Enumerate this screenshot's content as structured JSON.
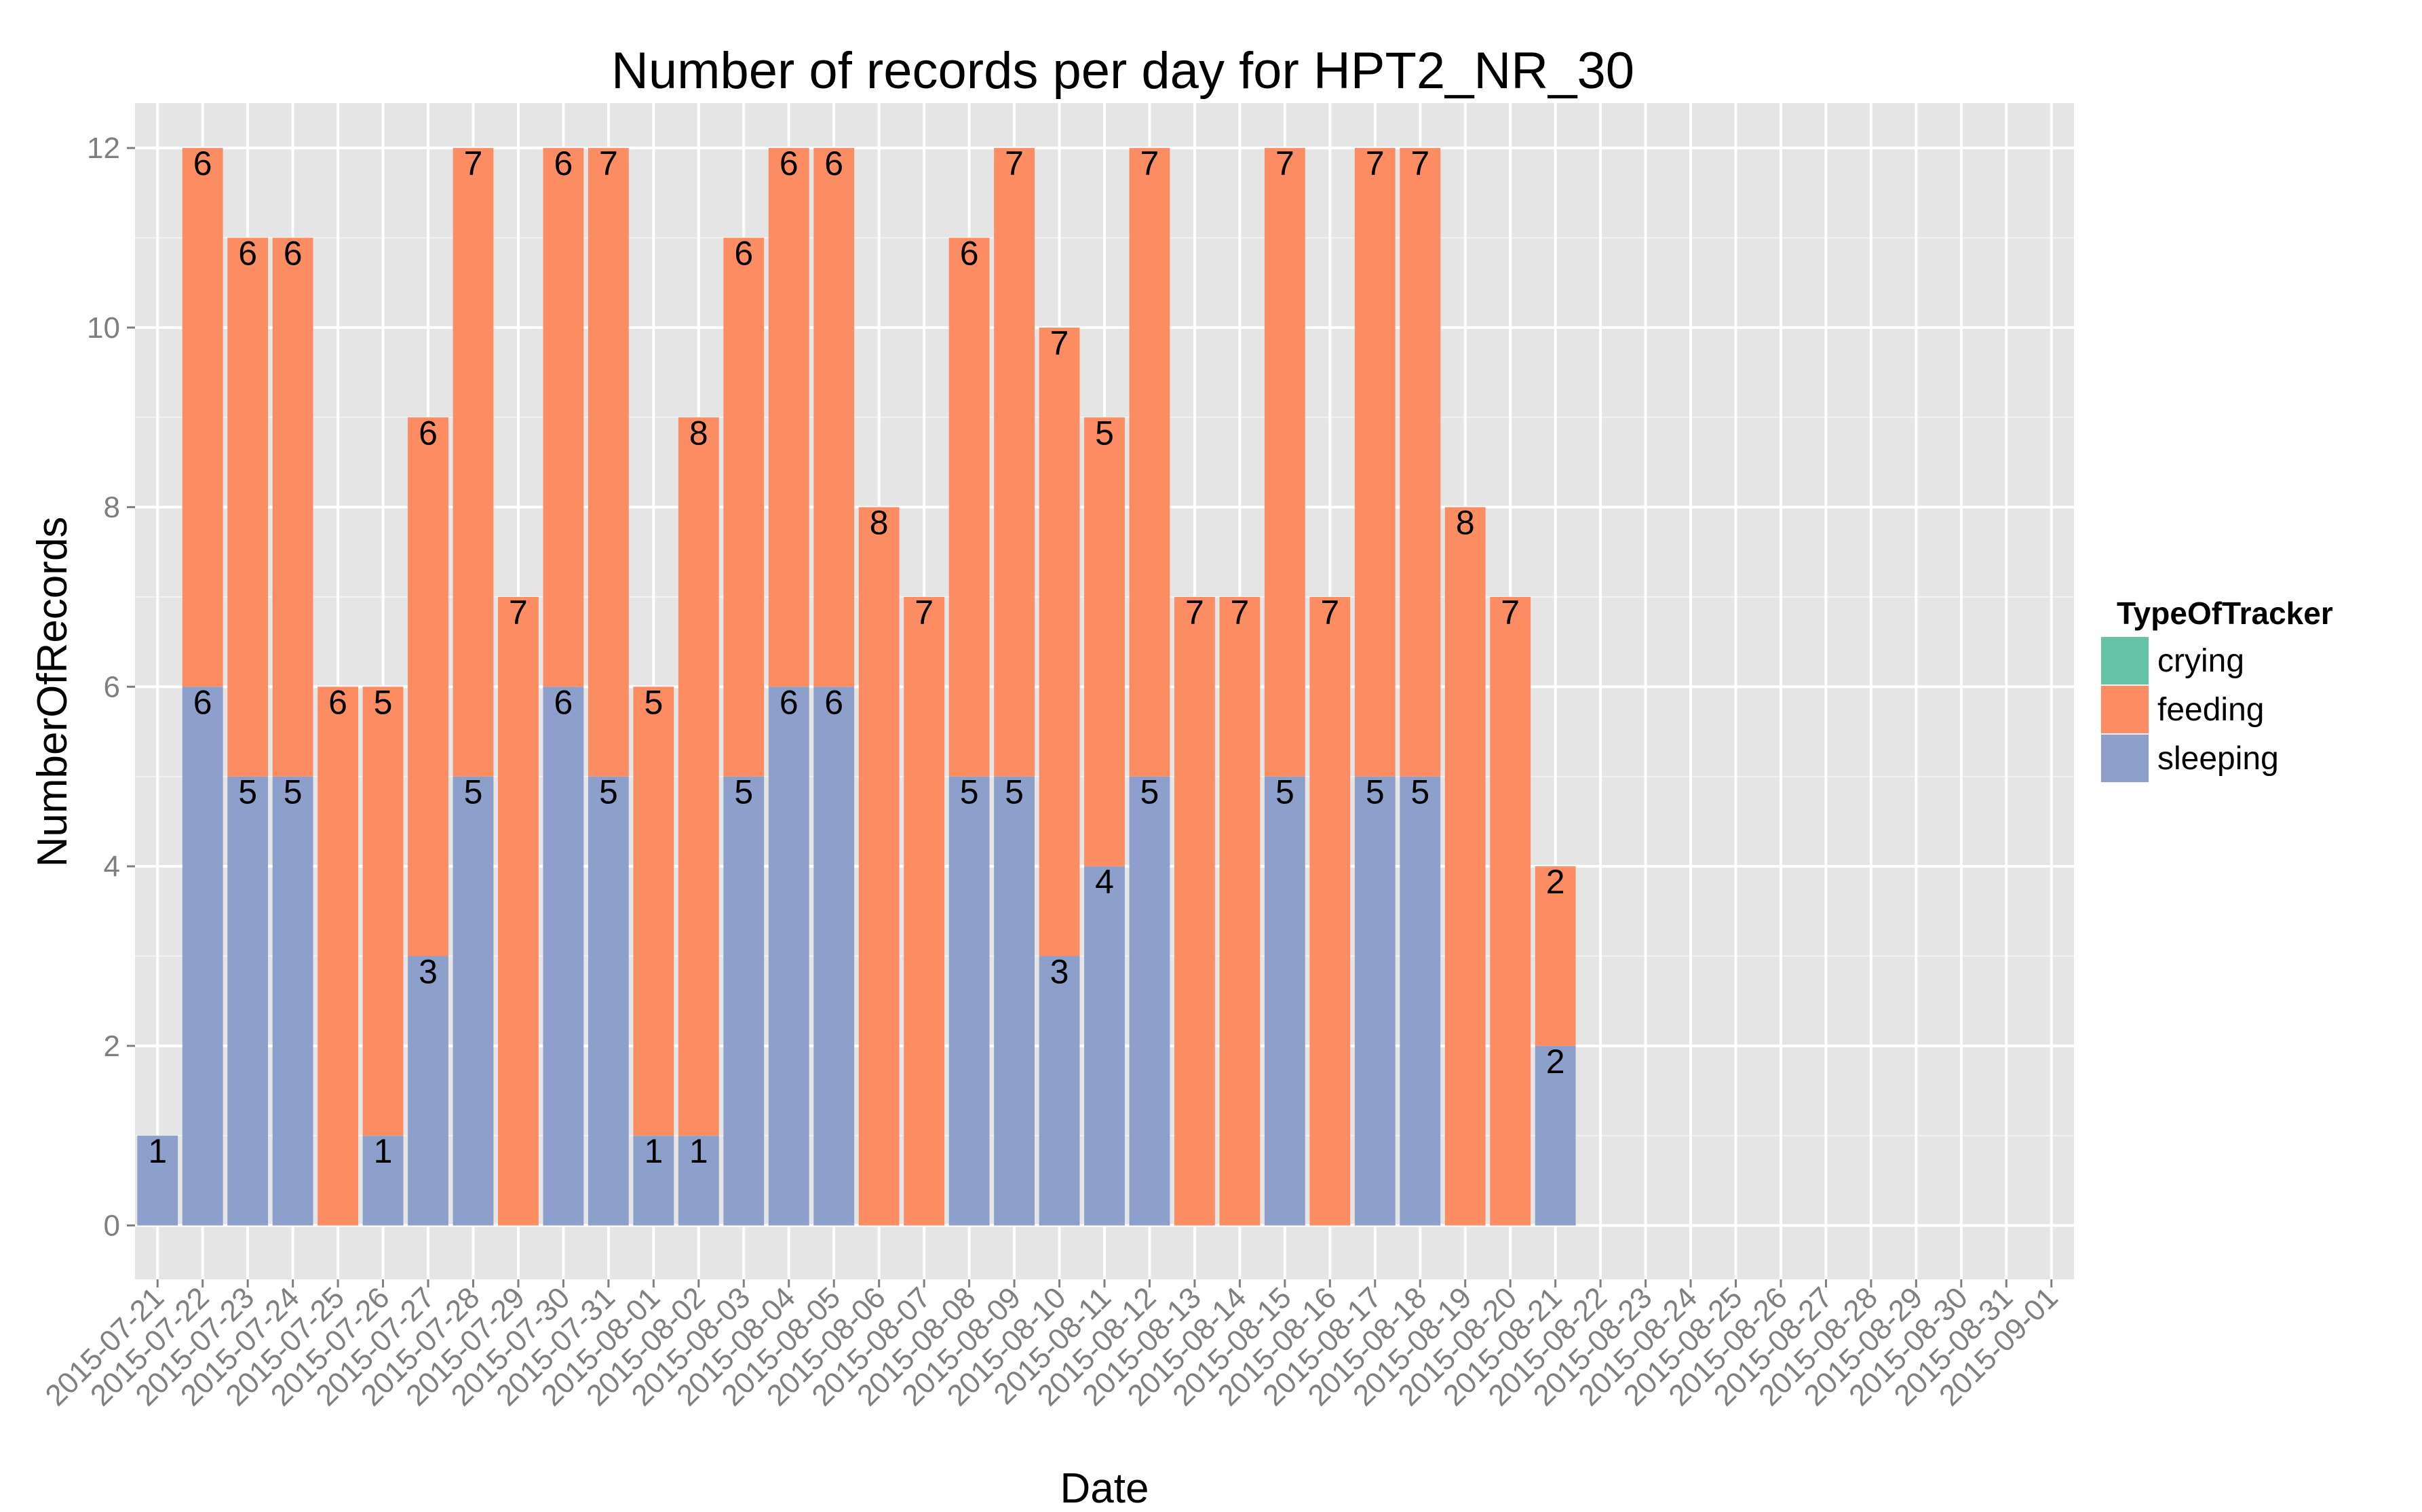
{
  "chart_data": {
    "type": "bar",
    "stacked": true,
    "title": "Number of records per day for HPT2_NR_30",
    "xlabel": "Date",
    "ylabel": "NumberOfRecords",
    "ylim": [
      -0.6,
      12.5
    ],
    "yticks": [
      0,
      2,
      4,
      6,
      8,
      10,
      12
    ],
    "legend": {
      "title": "TypeOfTracker",
      "position": "right"
    },
    "colors": {
      "crying": "#66c2a5",
      "feeding": "#fc8d62",
      "sleeping": "#8da0cb"
    },
    "categories": [
      "2015-07-21",
      "2015-07-22",
      "2015-07-23",
      "2015-07-24",
      "2015-07-25",
      "2015-07-26",
      "2015-07-27",
      "2015-07-28",
      "2015-07-29",
      "2015-07-30",
      "2015-07-31",
      "2015-08-01",
      "2015-08-02",
      "2015-08-03",
      "2015-08-04",
      "2015-08-05",
      "2015-08-06",
      "2015-08-07",
      "2015-08-08",
      "2015-08-09",
      "2015-08-10",
      "2015-08-11",
      "2015-08-12",
      "2015-08-13",
      "2015-08-14",
      "2015-08-15",
      "2015-08-16",
      "2015-08-17",
      "2015-08-18",
      "2015-08-19",
      "2015-08-20",
      "2015-08-21",
      "2015-08-22",
      "2015-08-23",
      "2015-08-24",
      "2015-08-25",
      "2015-08-26",
      "2015-08-27",
      "2015-08-28",
      "2015-08-29",
      "2015-08-30",
      "2015-08-31",
      "2015-09-01"
    ],
    "series": [
      {
        "name": "crying",
        "values": [
          0,
          0,
          0,
          0,
          0,
          0,
          0,
          0,
          0,
          0,
          0,
          0,
          0,
          0,
          0,
          0,
          0,
          0,
          0,
          0,
          0,
          0,
          0,
          0,
          0,
          0,
          0,
          0,
          0,
          0,
          0,
          0,
          0,
          0,
          0,
          0,
          0,
          0,
          0,
          0,
          0,
          0,
          0
        ]
      },
      {
        "name": "feeding",
        "values": [
          0,
          6,
          6,
          6,
          6,
          5,
          6,
          7,
          7,
          6,
          7,
          5,
          8,
          6,
          6,
          6,
          8,
          7,
          6,
          7,
          7,
          5,
          7,
          7,
          7,
          7,
          7,
          7,
          7,
          8,
          7,
          2,
          0,
          0,
          0,
          0,
          0,
          0,
          0,
          0,
          0,
          0,
          0
        ]
      },
      {
        "name": "sleeping",
        "values": [
          1,
          6,
          5,
          5,
          0,
          1,
          3,
          5,
          0,
          6,
          5,
          1,
          1,
          5,
          6,
          6,
          0,
          0,
          5,
          5,
          3,
          4,
          5,
          0,
          0,
          5,
          0,
          5,
          5,
          0,
          0,
          2,
          0,
          0,
          0,
          0,
          0,
          0,
          0,
          0,
          0,
          0,
          0
        ]
      }
    ]
  }
}
